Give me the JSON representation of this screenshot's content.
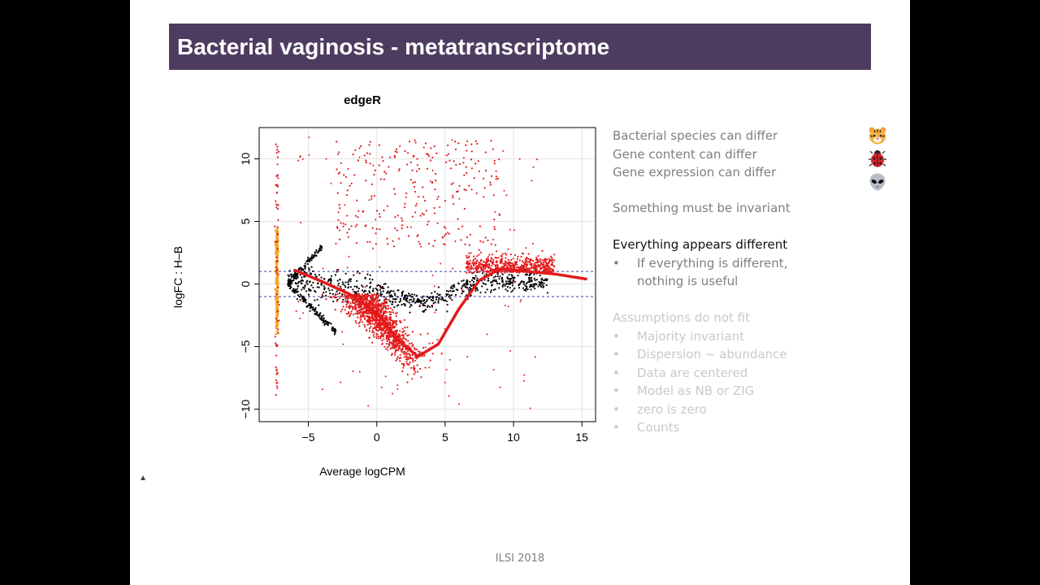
{
  "slide": {
    "title": "Bacterial vaginosis - metatranscriptome",
    "footer": "ILSI 2018"
  },
  "text_blocks": {
    "block1": [
      "Bacterial species can differ",
      "Gene content can differ",
      "Gene expression can differ"
    ],
    "block2": "Something must be invariant",
    "block3": {
      "heading": "Everything appears different",
      "bullet_line1": "If everything is different,",
      "bullet_line2": "nothing is useful"
    },
    "block4": {
      "heading": "Assumptions do not fit",
      "bullets": [
        "Majority invariant",
        "Dispersion ~ abundance",
        "Data are centered",
        "Model as NB or ZIG",
        "zero is zero",
        "Counts"
      ]
    }
  },
  "icons": [
    "tiger-icon",
    "ladybug-icon",
    "alien-icon"
  ],
  "chart_data": {
    "type": "scatter",
    "title": "edgeR",
    "xlabel": "Average logCPM",
    "ylabel": "logFC : H–B",
    "xlim": [
      -8.6,
      16
    ],
    "ylim": [
      -11,
      12.5
    ],
    "xticks": [
      -5,
      0,
      5,
      10,
      15
    ],
    "yticks": [
      -10,
      -5,
      0,
      5,
      10
    ],
    "xtick_labels": [
      "−5",
      "0",
      "5",
      "10",
      "15"
    ],
    "ytick_labels": [
      "−10",
      "−5",
      "0",
      "5",
      "10"
    ],
    "threshold_lines": [
      1,
      -1
    ],
    "grid": true,
    "colors": {
      "significant": "#e31a1c",
      "not_significant": "#000000",
      "zero_in_group": "#f5a623",
      "trend": "#e31a1c",
      "threshold": "#3a3ab8",
      "grid": "#e3e3e3"
    },
    "trend_line": {
      "x": [
        -6,
        -4,
        -2,
        0,
        1.5,
        3,
        4.5,
        6,
        7.5,
        9,
        11,
        13,
        15.3
      ],
      "y": [
        1.1,
        0.2,
        -0.8,
        -2.3,
        -4.4,
        -5.8,
        -4.8,
        -2.0,
        0.3,
        1.2,
        1.0,
        0.8,
        0.4
      ]
    }
  }
}
